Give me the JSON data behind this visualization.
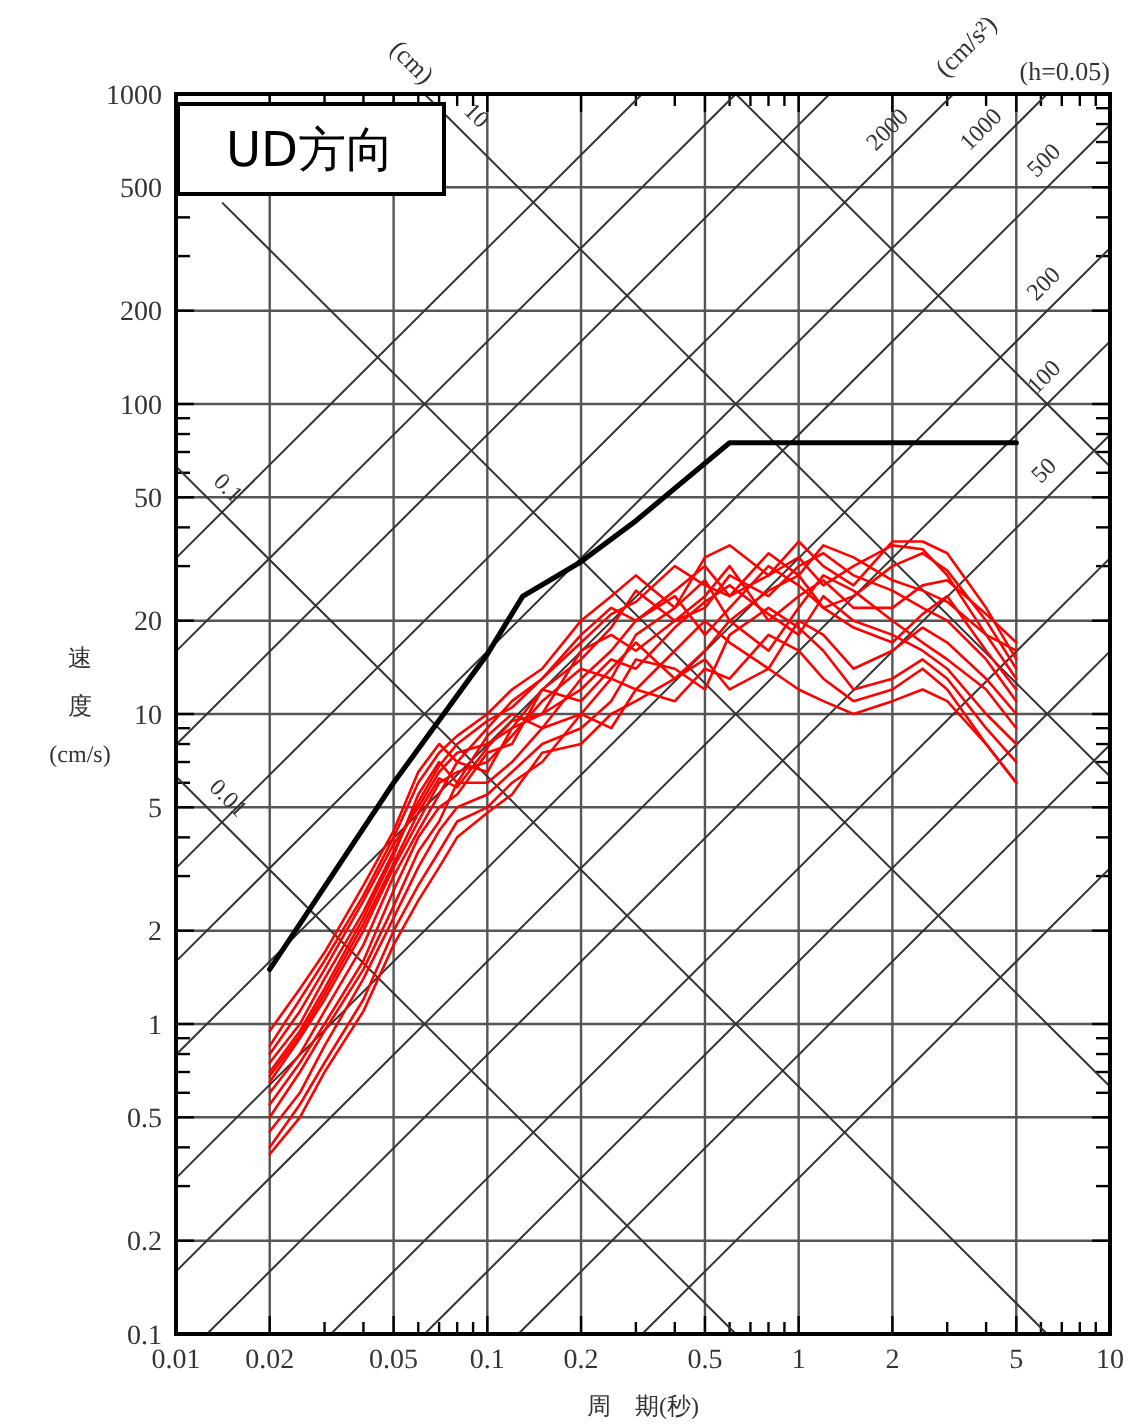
{
  "chart_data": {
    "type": "line",
    "title": "UD方向",
    "xlabel": "周　期(秒)",
    "ylabel": "速度(cm/s)",
    "annotations": [
      "(cm)",
      "(cm/s²)",
      "(h=0.05)"
    ],
    "log": "xy",
    "grid": true,
    "xlim": [
      0.01,
      10
    ],
    "ylim": [
      0.1,
      1000
    ],
    "xticks": [
      0.01,
      0.02,
      {
        "value": 0.03,
        "label": null
      },
      {
        "value": 0.04,
        "label": null
      },
      0.05,
      {
        "value": 0.06,
        "label": null
      },
      {
        "value": 0.07,
        "label": null
      },
      {
        "value": 0.08,
        "label": null
      },
      {
        "value": 0.09,
        "label": null
      },
      0.1,
      0.2,
      {
        "value": 0.3,
        "label": null
      },
      {
        "value": 0.4,
        "label": null
      },
      0.5,
      {
        "value": 0.6,
        "label": null
      },
      {
        "value": 0.7,
        "label": null
      },
      {
        "value": 0.8,
        "label": null
      },
      {
        "value": 0.9,
        "label": null
      },
      1,
      2,
      {
        "value": 3,
        "label": null
      },
      {
        "value": 4,
        "label": null
      },
      5,
      {
        "value": 6,
        "label": null
      },
      {
        "value": 7,
        "label": null
      },
      {
        "value": 8,
        "label": null
      },
      {
        "value": 9,
        "label": null
      },
      10
    ],
    "yticks": [
      0.1,
      0.2,
      {
        "value": 0.3,
        "label": null
      },
      {
        "value": 0.4,
        "label": null
      },
      0.5,
      {
        "value": 0.6,
        "label": null
      },
      {
        "value": 0.7,
        "label": null
      },
      {
        "value": 0.8,
        "label": null
      },
      {
        "value": 0.9,
        "label": null
      },
      1,
      2,
      {
        "value": 3,
        "label": null
      },
      {
        "value": 4,
        "label": null
      },
      5,
      {
        "value": 6,
        "label": null
      },
      {
        "value": 7,
        "label": null
      },
      {
        "value": 8,
        "label": null
      },
      {
        "value": 9,
        "label": null
      },
      10,
      20,
      {
        "value": 30,
        "label": null
      },
      {
        "value": 40,
        "label": null
      },
      50,
      {
        "value": 60,
        "label": null
      },
      {
        "value": 70,
        "label": null
      },
      {
        "value": 80,
        "label": null
      },
      {
        "value": 90,
        "label": null
      },
      100,
      200,
      {
        "value": 300,
        "label": null
      },
      {
        "value": 400,
        "label": null
      },
      500,
      {
        "value": 600,
        "label": null
      },
      {
        "value": 700,
        "label": null
      },
      {
        "value": 800,
        "label": null
      },
      {
        "value": 900,
        "label": null
      },
      1000
    ],
    "x": [
      0.02,
      0.025,
      0.03,
      0.04,
      0.05,
      0.06,
      0.07,
      0.08,
      0.1,
      0.12,
      0.15,
      0.2,
      0.25,
      0.3,
      0.4,
      0.5,
      0.6,
      0.8,
      1,
      1.2,
      1.5,
      2,
      2.5,
      3,
      4,
      5
    ],
    "series": [
      {
        "color": "#333333",
        "x": [
          0.01413,
          10
        ],
        "values": [
          444.7,
          0.6283
        ]
      },
      {
        "name": "10",
        "color": "#333333",
        "x": [
          0.06283,
          10
        ],
        "values": [
          1000,
          6.283
        ]
      },
      {
        "color": "#333333",
        "x": [
          0.6283,
          10
        ],
        "values": [
          1000,
          62.83
        ]
      },
      {
        "name": "0.1",
        "color": "#333333",
        "x": [
          0.01,
          6.283
        ],
        "values": [
          62.83,
          0.1
        ]
      },
      {
        "name": "0.01",
        "color": "#333333",
        "x": [
          0.01,
          0.6283
        ],
        "values": [
          6.283,
          0.1
        ]
      },
      {
        "color": "#333333",
        "x": [
          0.3142,
          10
        ],
        "values": [
          0.1,
          3.183
        ]
      },
      {
        "color": "#333333",
        "x": [
          0.1257,
          10
        ],
        "values": [
          0.1,
          7.958
        ]
      },
      {
        "color": "#333333",
        "x": [
          0.06283,
          10
        ],
        "values": [
          0.1,
          15.92
        ]
      },
      {
        "color": "#333333",
        "x": [
          0.03142,
          10
        ],
        "values": [
          0.1,
          31.83
        ]
      },
      {
        "name": "50",
        "color": "#333333",
        "x": [
          0.01257,
          10
        ],
        "values": [
          0.1,
          79.58
        ]
      },
      {
        "name": "100",
        "color": "#333333",
        "x": [
          0.01,
          10
        ],
        "values": [
          0.1592,
          159.2
        ]
      },
      {
        "name": "200",
        "color": "#333333",
        "x": [
          0.01,
          10
        ],
        "values": [
          0.3183,
          318.3
        ]
      },
      {
        "name": "500",
        "color": "#333333",
        "x": [
          0.01,
          10
        ],
        "values": [
          0.7958,
          795.8
        ]
      },
      {
        "name": "1000",
        "color": "#333333",
        "x": [
          0.01,
          6.283
        ],
        "values": [
          1.592,
          1000
        ]
      },
      {
        "name": "2000",
        "color": "#333333",
        "x": [
          0.01,
          3.142
        ],
        "values": [
          3.183,
          1000
        ]
      },
      {
        "color": "#333333",
        "x": [
          0.01,
          1.257
        ],
        "values": [
          7.958,
          1000
        ]
      },
      {
        "color": "#333333",
        "x": [
          0.01,
          0.6283
        ],
        "values": [
          15.92,
          1000
        ]
      },
      {
        "color": "#333333",
        "x": [
          0.01,
          0.3142
        ],
        "values": [
          31.83,
          1000
        ]
      },
      {
        "color": "#ff0000",
        "values": [
          0.95,
          1.3,
          1.7,
          2.8,
          4.2,
          6.5,
          8,
          7,
          9,
          11,
          13,
          18,
          22,
          20,
          25,
          30,
          24,
          28,
          32,
          26,
          30,
          35,
          34,
          28,
          18,
          13
        ]
      },
      {
        "color": "#ff0000",
        "values": [
          0.8,
          1.1,
          1.5,
          2.5,
          3.8,
          5,
          6.5,
          7.5,
          8,
          9,
          12,
          15,
          19,
          25,
          20,
          22,
          28,
          24,
          30,
          33,
          28,
          25,
          22,
          20,
          15,
          11
        ]
      },
      {
        "color": "#ff0000",
        "values": [
          0.7,
          0.95,
          1.3,
          2.2,
          3.5,
          5.5,
          7,
          6,
          8.5,
          10,
          9,
          13,
          16,
          20,
          24,
          18,
          22,
          30,
          26,
          22,
          24,
          30,
          33,
          29,
          20,
          14
        ]
      },
      {
        "color": "#ff0000",
        "values": [
          0.65,
          0.9,
          1.2,
          2,
          3.2,
          4.5,
          6,
          6.5,
          7,
          8.5,
          11,
          14,
          13,
          18,
          22,
          27,
          20,
          16,
          22,
          28,
          25,
          20,
          17,
          15,
          12,
          9
        ]
      },
      {
        "color": "#ff0000",
        "values": [
          0.6,
          0.8,
          1.1,
          1.8,
          3,
          4.2,
          5.5,
          7,
          6.5,
          9,
          10,
          12,
          15,
          14,
          19,
          23,
          26,
          21,
          18,
          24,
          20,
          18,
          16,
          14,
          10,
          8
        ]
      },
      {
        "color": "#ff0000",
        "values": [
          0.55,
          0.75,
          1,
          1.6,
          2.7,
          4,
          5,
          5.5,
          7.5,
          8,
          12,
          11,
          14,
          17,
          13,
          16,
          20,
          25,
          28,
          22,
          19,
          17,
          21,
          24,
          16,
          12
        ]
      },
      {
        "color": "#ff0000",
        "values": [
          0.5,
          0.7,
          0.95,
          1.5,
          2.4,
          3.6,
          4.5,
          6,
          6,
          7,
          9,
          10,
          13,
          12,
          16,
          20,
          17,
          14,
          20,
          18,
          14,
          16,
          19,
          17,
          13,
          10
        ]
      },
      {
        "color": "#ff0000",
        "values": [
          0.45,
          0.6,
          0.85,
          1.4,
          2.2,
          3.2,
          4.2,
          5,
          5.5,
          6.5,
          8,
          9,
          11,
          15,
          14,
          12,
          18,
          22,
          19,
          16,
          12,
          13,
          15,
          13,
          9,
          7
        ]
      },
      {
        "color": "#ff0000",
        "values": [
          0.4,
          0.55,
          0.75,
          1.2,
          2,
          2.8,
          3.6,
          4.5,
          5,
          6,
          7,
          10,
          9,
          12,
          11,
          14,
          13,
          18,
          16,
          13,
          11,
          12,
          14,
          12,
          8,
          6
        ]
      },
      {
        "color": "#ff0000",
        "values": [
          0.38,
          0.5,
          0.7,
          1.1,
          1.8,
          2.5,
          3.2,
          4,
          4.8,
          5.5,
          7.5,
          8,
          10,
          11,
          13,
          15,
          12,
          14,
          12,
          11,
          10,
          11,
          12,
          11,
          8,
          6
        ]
      },
      {
        "color": "#ff0000",
        "values": [
          0.85,
          1.2,
          1.6,
          2.6,
          4,
          6,
          7.5,
          8.5,
          10,
          12,
          14,
          20,
          24,
          28,
          22,
          32,
          35,
          28,
          36,
          30,
          26,
          36,
          36,
          33,
          22,
          15
        ]
      },
      {
        "color": "#ff0000",
        "values": [
          0.75,
          1,
          1.4,
          2.3,
          3.6,
          5.2,
          6.8,
          8,
          9.5,
          10.5,
          13,
          17,
          21,
          23,
          30,
          26,
          24,
          33,
          28,
          35,
          32,
          27,
          25,
          23,
          18,
          16
        ]
      },
      {
        "color": "#ff0000",
        "values": [
          0.68,
          0.92,
          1.25,
          2.1,
          3.3,
          4.8,
          6.2,
          5.8,
          7.8,
          9.5,
          10,
          16,
          18,
          16,
          20,
          24,
          30,
          20,
          24,
          27,
          22,
          22,
          26,
          27,
          21,
          17
        ]
      },
      {
        "color": "#000000",
        "x": [
          0.02,
          0.05,
          0.1,
          0.13,
          0.2,
          0.3,
          0.6,
          5
        ],
        "values": [
          1.5,
          6,
          15.6,
          24,
          31,
          42,
          75,
          75
        ]
      }
    ]
  }
}
